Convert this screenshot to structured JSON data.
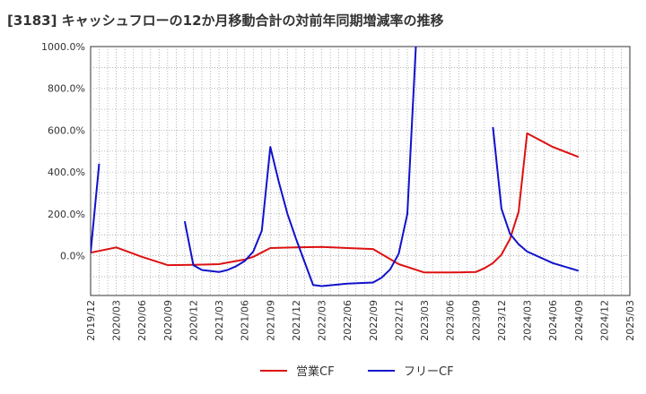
{
  "chart_data": {
    "type": "line",
    "title": "[3183]  キャッシュフローの12か月移動合計の対前年同期増減率の推移",
    "xlabel": "",
    "ylabel": "",
    "ylim": [
      -190,
      1000
    ],
    "yticks": [
      {
        "value": 0,
        "label": "0.0%"
      },
      {
        "value": 200,
        "label": "200.0%"
      },
      {
        "value": 400,
        "label": "400.0%"
      },
      {
        "value": 600,
        "label": "600.0%"
      },
      {
        "value": 800,
        "label": "800.0%"
      },
      {
        "value": 1000,
        "label": "1000.0%"
      }
    ],
    "xticks": [
      "2019/12",
      "2020/03",
      "2020/06",
      "2020/09",
      "2020/12",
      "2021/03",
      "2021/06",
      "2021/09",
      "2021/12",
      "2022/03",
      "2022/06",
      "2022/09",
      "2022/12",
      "2023/03",
      "2023/06",
      "2023/09",
      "2023/12",
      "2024/03",
      "2024/06",
      "2024/09",
      "2024/12",
      "2025/03"
    ],
    "x_start": "2019/12",
    "x_end": "2025/03",
    "grid": true,
    "legend_position": "bottom",
    "series": [
      {
        "name": "営業CF",
        "color": "#dd1111",
        "points": [
          [
            "2019/12",
            15
          ],
          [
            "2020/03",
            40
          ],
          [
            "2020/06",
            -5
          ],
          [
            "2020/09",
            -45
          ],
          [
            "2020/12",
            -43
          ],
          [
            "2021/03",
            -40
          ],
          [
            "2021/06",
            -18
          ],
          [
            "2021/07",
            -5
          ],
          [
            "2021/09",
            37
          ],
          [
            "2021/12",
            40
          ],
          [
            "2022/03",
            42
          ],
          [
            "2022/06",
            37
          ],
          [
            "2022/09",
            32
          ],
          [
            "2022/12",
            -40
          ],
          [
            "2023/03",
            -80
          ],
          [
            "2023/06",
            -80
          ],
          [
            "2023/09",
            -78
          ],
          [
            "2023/10",
            -60
          ],
          [
            "2023/11",
            -35
          ],
          [
            "2023/12",
            5
          ],
          [
            "2024/01",
            80
          ],
          [
            "2024/02",
            210
          ],
          [
            "2024/03",
            585
          ],
          [
            "2024/06",
            520
          ],
          [
            "2024/09",
            472
          ]
        ]
      },
      {
        "name": "フリーCF",
        "color": "#1111cc",
        "segments": [
          [
            [
              "2019/12",
              15
            ],
            [
              "2020/01",
              440
            ]
          ],
          [
            [
              "2020/11",
              165
            ],
            [
              "2020/12",
              -45
            ],
            [
              "2021/01",
              -68
            ],
            [
              "2021/03",
              -78
            ],
            [
              "2021/04",
              -68
            ],
            [
              "2021/05",
              -50
            ],
            [
              "2021/06",
              -25
            ],
            [
              "2021/07",
              20
            ],
            [
              "2021/08",
              120
            ],
            [
              "2021/09",
              520
            ],
            [
              "2021/10",
              350
            ],
            [
              "2021/11",
              200
            ],
            [
              "2021/12",
              80
            ],
            [
              "2022/01",
              -30
            ],
            [
              "2022/02",
              -140
            ],
            [
              "2022/03",
              -145
            ],
            [
              "2022/06",
              -133
            ],
            [
              "2022/09",
              -128
            ],
            [
              "2022/10",
              -105
            ],
            [
              "2022/11",
              -65
            ],
            [
              "2022/12",
              10
            ],
            [
              "2023/01",
              200
            ],
            [
              "2023/02",
              1000
            ]
          ],
          [
            [
              "2023/11",
              615
            ],
            [
              "2023/12",
              225
            ],
            [
              "2024/01",
              105
            ],
            [
              "2024/02",
              55
            ],
            [
              "2024/03",
              20
            ],
            [
              "2024/06",
              -35
            ],
            [
              "2024/09",
              -72
            ]
          ]
        ]
      }
    ]
  }
}
